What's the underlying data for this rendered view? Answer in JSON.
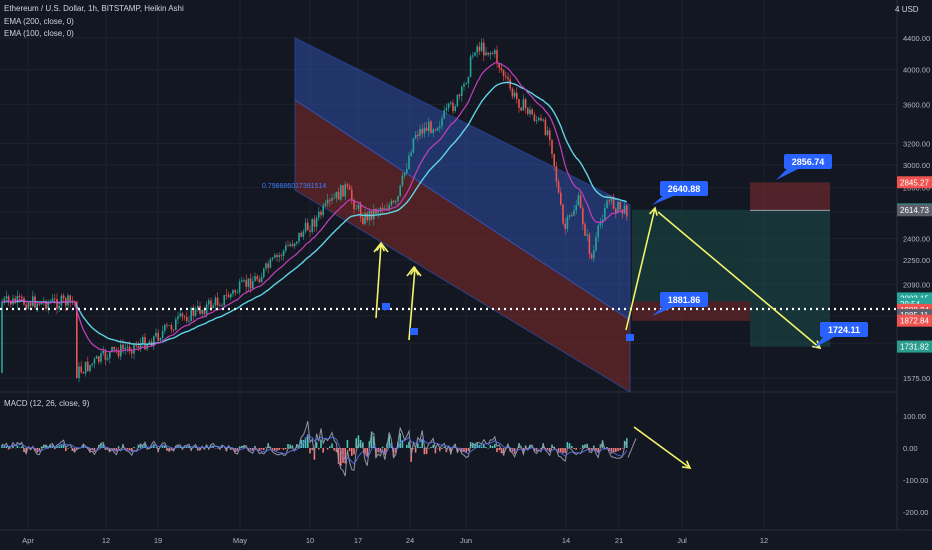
{
  "legend": {
    "title": "Ethereum / U.S. Dollar, 1h, BITSTAMP, Heikin Ashi",
    "ema200": "EMA (200, close, 0)",
    "ema100": "EMA (100, close, 0)",
    "macd": "MACD (12, 26, close, 9)"
  },
  "currency_label": "USD",
  "currency_prefix": "4",
  "channel_label": "0.798886017391514",
  "colors": {
    "bg": "#131722",
    "bull": "#26a69a",
    "bear": "#ef5350",
    "ema_slow": "#5fd3e6",
    "ema_fast": "#c43fbf",
    "channel_blue": "#2d4fa8",
    "channel_red": "#7a2a2a",
    "arrow": "#f3f36b",
    "callout": "#2962ff",
    "dotted": "#ffffff"
  },
  "chart_data": [
    {
      "type": "candlestick",
      "ylog": true,
      "y_ticks": [
        1575,
        1750,
        1900,
        2090,
        2250,
        2400,
        2600,
        2800,
        3000,
        3200,
        3600,
        4000,
        4400
      ],
      "x_ticks": [
        "Apr",
        "12",
        "19",
        "May",
        "10",
        "17",
        "24",
        "Jun",
        "14",
        "21",
        "Jul",
        "12"
      ],
      "price_tags": [
        {
          "label": "2845.27",
          "value": 2845.27,
          "color": "#ef5350"
        },
        {
          "label": "2620.96",
          "value": 2620.96,
          "color": "#2a9d8f"
        },
        {
          "label": "2614.73",
          "value": 2614.73,
          "color": "#5d606b"
        },
        {
          "label": "2003.15",
          "value": 2003.15,
          "color": "#26a69a"
        },
        {
          "label": "29:54",
          "value": 1970,
          "color": "#26a69a"
        },
        {
          "label": "1988.24",
          "value": 1935,
          "color": "#ef5350"
        },
        {
          "label": "1985.11",
          "value": 1905,
          "color": "#5d606b"
        },
        {
          "label": "1872.84",
          "value": 1872.84,
          "color": "#ef5350"
        },
        {
          "label": "1731.82",
          "value": 1731.82,
          "color": "#2a9d8f"
        }
      ],
      "current_price": 2003.15,
      "path_points": [
        [
          8.2,
          1600
        ],
        [
          12,
          1700
        ],
        [
          16,
          1760
        ],
        [
          20,
          1900
        ],
        [
          24,
          2000
        ],
        [
          28,
          2150
        ],
        [
          31,
          2350
        ],
        [
          34,
          2550
        ],
        [
          37,
          2800
        ],
        [
          39,
          2550
        ],
        [
          41,
          2650
        ],
        [
          42.5,
          2650
        ],
        [
          44.5,
          3300
        ],
        [
          47,
          3400
        ],
        [
          49.5,
          3700
        ],
        [
          51,
          4300
        ],
        [
          53,
          4200
        ],
        [
          55,
          3700
        ],
        [
          57,
          3500
        ],
        [
          59,
          3300
        ],
        [
          60.5,
          2450
        ],
        [
          62,
          2700
        ],
        [
          63.5,
          2250
        ],
        [
          65,
          2700
        ],
        [
          67,
          2600
        ],
        [
          69,
          2750
        ],
        [
          71,
          2600
        ],
        [
          73,
          2700
        ],
        [
          75,
          2650
        ],
        [
          77,
          2600
        ],
        [
          79,
          2550
        ],
        [
          81,
          2450
        ],
        [
          83,
          2350
        ],
        [
          86,
          2250
        ],
        [
          88,
          1980
        ]
      ],
      "annotations": [
        {
          "label": "2856.74",
          "value": 2856.74
        },
        {
          "label": "2640.88",
          "value": 2640.88
        },
        {
          "label": "1881.86",
          "value": 1881.86
        },
        {
          "label": "1724.11",
          "value": 1724.11
        }
      ]
    },
    {
      "type": "histogram",
      "title": "MACD (12, 26, close, 9)",
      "y_ticks": [
        100,
        0,
        -100,
        -200
      ],
      "ylim": [
        -230,
        130
      ]
    }
  ]
}
